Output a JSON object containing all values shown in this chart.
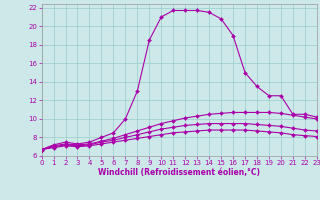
{
  "xlabel": "Windchill (Refroidissement éolien,°C)",
  "bg_color": "#cce8e8",
  "line_color": "#aa00aa",
  "grid_color": "#99cccc",
  "xlim": [
    0,
    23
  ],
  "ylim": [
    6,
    22.4
  ],
  "xticks": [
    0,
    1,
    2,
    3,
    4,
    5,
    6,
    7,
    8,
    9,
    10,
    11,
    12,
    13,
    14,
    15,
    16,
    17,
    18,
    19,
    20,
    21,
    22,
    23
  ],
  "yticks": [
    6,
    8,
    10,
    12,
    14,
    16,
    18,
    20,
    22
  ],
  "curve1_x": [
    0,
    1,
    2,
    3,
    4,
    5,
    6,
    7,
    8,
    9,
    10,
    11,
    12,
    13,
    14,
    15,
    16,
    17,
    18,
    19,
    20,
    21,
    22,
    23
  ],
  "curve1_y": [
    6.7,
    7.2,
    7.5,
    7.3,
    7.5,
    8.0,
    8.5,
    10.0,
    13.0,
    18.5,
    21.0,
    21.7,
    21.7,
    21.7,
    21.5,
    20.8,
    19.0,
    15.0,
    13.5,
    12.5,
    12.5,
    10.5,
    10.5,
    10.2
  ],
  "curve2_x": [
    0,
    1,
    2,
    3,
    4,
    5,
    6,
    7,
    8,
    9,
    10,
    11,
    12,
    13,
    14,
    15,
    16,
    17,
    18,
    19,
    20,
    21,
    22,
    23
  ],
  "curve2_y": [
    6.7,
    7.1,
    7.3,
    7.2,
    7.3,
    7.6,
    7.9,
    8.3,
    8.7,
    9.1,
    9.5,
    9.8,
    10.1,
    10.3,
    10.5,
    10.6,
    10.7,
    10.7,
    10.7,
    10.7,
    10.6,
    10.4,
    10.2,
    10.0
  ],
  "curve3_x": [
    0,
    1,
    2,
    3,
    4,
    5,
    6,
    7,
    8,
    9,
    10,
    11,
    12,
    13,
    14,
    15,
    16,
    17,
    18,
    19,
    20,
    21,
    22,
    23
  ],
  "curve3_y": [
    6.7,
    7.0,
    7.2,
    7.1,
    7.2,
    7.5,
    7.7,
    8.0,
    8.3,
    8.6,
    8.9,
    9.1,
    9.3,
    9.4,
    9.5,
    9.5,
    9.5,
    9.5,
    9.4,
    9.3,
    9.2,
    9.0,
    8.8,
    8.7
  ],
  "curve4_x": [
    0,
    1,
    2,
    3,
    4,
    5,
    6,
    7,
    8,
    9,
    10,
    11,
    12,
    13,
    14,
    15,
    16,
    17,
    18,
    19,
    20,
    21,
    22,
    23
  ],
  "curve4_y": [
    6.7,
    6.9,
    7.1,
    7.0,
    7.1,
    7.3,
    7.5,
    7.7,
    7.9,
    8.1,
    8.3,
    8.5,
    8.6,
    8.7,
    8.8,
    8.8,
    8.8,
    8.8,
    8.7,
    8.6,
    8.5,
    8.3,
    8.2,
    8.1
  ],
  "xlabel_fontsize": 5.5,
  "tick_fontsize": 5,
  "lw": 0.8,
  "marker_size": 2
}
